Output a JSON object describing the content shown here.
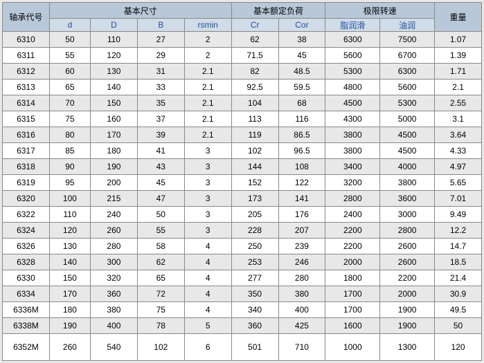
{
  "header": {
    "code": "轴承代号",
    "basicDim": "基本尺寸",
    "basicLoad": "基本额定负荷",
    "limitSpeed": "极限转速",
    "weight": "重量",
    "d": "d",
    "D": "D",
    "B": "B",
    "rsmin": "rsmin",
    "Cr": "Cr",
    "Cor": "Cor",
    "grease": "脂润滑",
    "oil": "油润"
  },
  "rows": [
    {
      "code": "6310",
      "d": "50",
      "D": "110",
      "B": "27",
      "rs": "2",
      "cr": "62",
      "cor": "38",
      "g": "6300",
      "o": "7500",
      "w": "1.07"
    },
    {
      "code": "6311",
      "d": "55",
      "D": "120",
      "B": "29",
      "rs": "2",
      "cr": "71.5",
      "cor": "45",
      "g": "5600",
      "o": "6700",
      "w": "1.39"
    },
    {
      "code": "6312",
      "d": "60",
      "D": "130",
      "B": "31",
      "rs": "2.1",
      "cr": "82",
      "cor": "48.5",
      "g": "5300",
      "o": "6300",
      "w": "1.71"
    },
    {
      "code": "6313",
      "d": "65",
      "D": "140",
      "B": "33",
      "rs": "2.1",
      "cr": "92.5",
      "cor": "59.5",
      "g": "4800",
      "o": "5600",
      "w": "2.1"
    },
    {
      "code": "6314",
      "d": "70",
      "D": "150",
      "B": "35",
      "rs": "2.1",
      "cr": "104",
      "cor": "68",
      "g": "4500",
      "o": "5300",
      "w": "2.55"
    },
    {
      "code": "6315",
      "d": "75",
      "D": "160",
      "B": "37",
      "rs": "2.1",
      "cr": "113",
      "cor": "116",
      "g": "4300",
      "o": "5000",
      "w": "3.1"
    },
    {
      "code": "6316",
      "d": "80",
      "D": "170",
      "B": "39",
      "rs": "2.1",
      "cr": "119",
      "cor": "86.5",
      "g": "3800",
      "o": "4500",
      "w": "3.64"
    },
    {
      "code": "6317",
      "d": "85",
      "D": "180",
      "B": "41",
      "rs": "3",
      "cr": "102",
      "cor": "96.5",
      "g": "3800",
      "o": "4500",
      "w": "4.33"
    },
    {
      "code": "6318",
      "d": "90",
      "D": "190",
      "B": "43",
      "rs": "3",
      "cr": "144",
      "cor": "108",
      "g": "3400",
      "o": "4000",
      "w": "4.97"
    },
    {
      "code": "6319",
      "d": "95",
      "D": "200",
      "B": "45",
      "rs": "3",
      "cr": "152",
      "cor": "122",
      "g": "3200",
      "o": "3800",
      "w": "5.65"
    },
    {
      "code": "6320",
      "d": "100",
      "D": "215",
      "B": "47",
      "rs": "3",
      "cr": "173",
      "cor": "141",
      "g": "2800",
      "o": "3600",
      "w": "7.01"
    },
    {
      "code": "6322",
      "d": "110",
      "D": "240",
      "B": "50",
      "rs": "3",
      "cr": "205",
      "cor": "176",
      "g": "2400",
      "o": "3000",
      "w": "9.49"
    },
    {
      "code": "6324",
      "d": "120",
      "D": "260",
      "B": "55",
      "rs": "3",
      "cr": "228",
      "cor": "207",
      "g": "2200",
      "o": "2800",
      "w": "12.2"
    },
    {
      "code": "6326",
      "d": "130",
      "D": "280",
      "B": "58",
      "rs": "4",
      "cr": "250",
      "cor": "239",
      "g": "2200",
      "o": "2600",
      "w": "14.7"
    },
    {
      "code": "6328",
      "d": "140",
      "D": "300",
      "B": "62",
      "rs": "4",
      "cr": "253",
      "cor": "246",
      "g": "2000",
      "o": "2600",
      "w": "18.5"
    },
    {
      "code": "6330",
      "d": "150",
      "D": "320",
      "B": "65",
      "rs": "4",
      "cr": "277",
      "cor": "280",
      "g": "1800",
      "o": "2200",
      "w": "21.4"
    },
    {
      "code": "6334",
      "d": "170",
      "D": "360",
      "B": "72",
      "rs": "4",
      "cr": "350",
      "cor": "380",
      "g": "1700",
      "o": "2000",
      "w": "30.9"
    },
    {
      "code": "6336M",
      "d": "180",
      "D": "380",
      "B": "75",
      "rs": "4",
      "cr": "340",
      "cor": "400",
      "g": "1700",
      "o": "1900",
      "w": "49.5"
    },
    {
      "code": "6338M",
      "d": "190",
      "D": "400",
      "B": "78",
      "rs": "5",
      "cr": "360",
      "cor": "425",
      "g": "1600",
      "o": "1900",
      "w": "50"
    },
    {
      "code": "6352M",
      "d": "260",
      "D": "540",
      "B": "102",
      "rs": "6",
      "cr": "501",
      "cor": "710",
      "g": "1000",
      "o": "1300",
      "w": "120"
    }
  ]
}
